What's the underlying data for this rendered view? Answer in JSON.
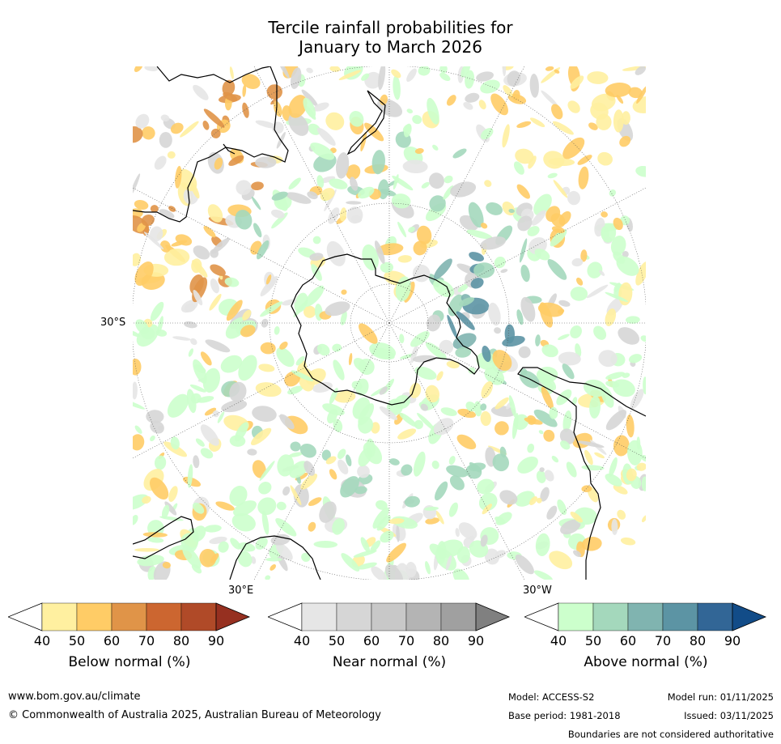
{
  "title": {
    "line1": "Tercile rainfall probabilities for",
    "line2": "January to March 2026"
  },
  "map": {
    "graticule_labels": {
      "lat_30s": "30°S",
      "lon_30e": "30°E",
      "lon_30w": "30°W"
    },
    "projection": "south-polar stereographic"
  },
  "legends": [
    {
      "id": "below",
      "label": "Below normal (%)",
      "ticks": [
        "40",
        "50",
        "60",
        "70",
        "80",
        "90"
      ],
      "colors": [
        "#fff0a0",
        "#ffcc66",
        "#e09448",
        "#cc6630",
        "#b04a28",
        "#963020"
      ]
    },
    {
      "id": "near",
      "label": "Near normal (%)",
      "ticks": [
        "40",
        "50",
        "60",
        "70",
        "80",
        "90"
      ],
      "colors": [
        "#e6e6e6",
        "#d6d6d6",
        "#c8c8c8",
        "#b4b4b4",
        "#a0a0a0",
        "#808080"
      ]
    },
    {
      "id": "above",
      "label": "Above normal (%)",
      "ticks": [
        "40",
        "50",
        "60",
        "70",
        "80",
        "90"
      ],
      "colors": [
        "#ccffcc",
        "#a4d8bc",
        "#80b4b0",
        "#5c94a4",
        "#326696",
        "#124c88"
      ]
    }
  ],
  "footer": {
    "url": "www.bom.gov.au/climate",
    "copyright": "© Commonwealth of Australia 2025, Australian Bureau of Meteorology",
    "model": "Model: ACCESS-S2",
    "base_period": "Base period: 1981-2018",
    "model_run": "Model run: 01/11/2025",
    "issued": "Issued: 03/11/2025",
    "disclaimer": "Boundaries are not considered authoritative"
  }
}
